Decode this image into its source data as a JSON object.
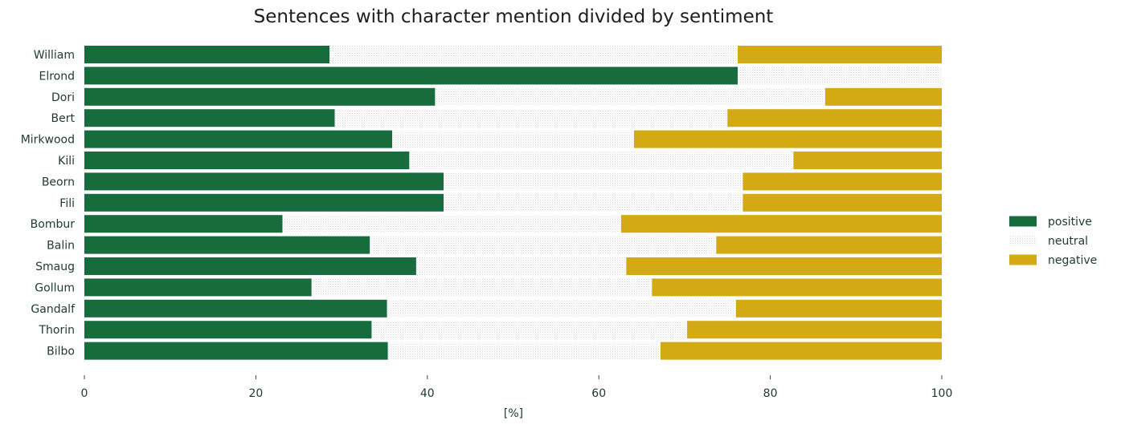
{
  "chart_data": {
    "type": "bar",
    "orientation": "horizontal",
    "stacked": true,
    "title": "Sentences with character mention divided by sentiment",
    "xlabel": "[%]",
    "ylabel": "",
    "xlim": [
      0,
      100
    ],
    "xticks": [
      0,
      20,
      40,
      60,
      80,
      100
    ],
    "grid": false,
    "legend_position": "right",
    "categories": [
      "William",
      "Elrond",
      "Dori",
      "Bert",
      "Mirkwood",
      "Kili",
      "Beorn",
      "Fili",
      "Bombur",
      "Balin",
      "Smaug",
      "Gollum",
      "Gandalf",
      "Thorin",
      "Bilbo"
    ],
    "series": [
      {
        "name": "positive",
        "color": "#166c3c",
        "values": [
          28.6,
          76.2,
          40.9,
          29.2,
          35.9,
          37.9,
          41.9,
          41.9,
          23.1,
          33.3,
          38.7,
          26.5,
          35.3,
          33.5,
          35.4
        ]
      },
      {
        "name": "neutral",
        "color": "#f2f2f2",
        "values": [
          47.6,
          23.8,
          45.5,
          45.8,
          28.2,
          44.8,
          34.9,
          34.9,
          39.5,
          40.4,
          24.5,
          39.7,
          40.7,
          36.8,
          31.8
        ]
      },
      {
        "name": "negative",
        "color": "#d4aa14",
        "values": [
          23.8,
          0.0,
          13.6,
          25.0,
          35.9,
          17.3,
          23.2,
          23.2,
          37.4,
          26.3,
          36.8,
          33.8,
          24.0,
          29.7,
          32.8
        ]
      }
    ]
  }
}
